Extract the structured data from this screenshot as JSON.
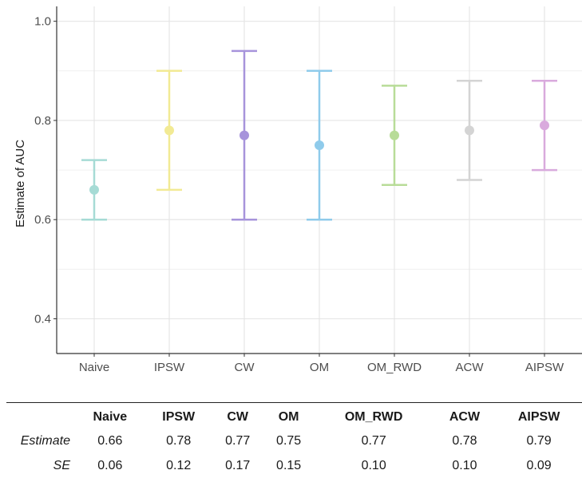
{
  "chart_data": {
    "type": "errorbar",
    "ylabel": "Estimate of AUC",
    "xlabel": "",
    "categories": [
      "Naive",
      "IPSW",
      "CW",
      "OM",
      "OM_RWD",
      "ACW",
      "AIPSW"
    ],
    "estimates": [
      0.66,
      0.78,
      0.77,
      0.75,
      0.77,
      0.78,
      0.79
    ],
    "lower": [
      0.6,
      0.66,
      0.6,
      0.6,
      0.67,
      0.68,
      0.7
    ],
    "upper": [
      0.72,
      0.9,
      0.94,
      0.9,
      0.87,
      0.88,
      0.88
    ],
    "colors": [
      "#a6dbd5",
      "#f2ea94",
      "#a794db",
      "#8fcbeb",
      "#b8dc98",
      "#d4d4d4",
      "#d9aadd"
    ],
    "ylim": [
      0.33,
      1.03
    ],
    "yticks": [
      0.4,
      0.6,
      0.8,
      1.0
    ],
    "ytick_labels": [
      "0.4",
      "0.6",
      "0.8",
      "1.0"
    ],
    "grid": true,
    "legend": "none"
  },
  "table": {
    "headers": [
      "",
      "Naive",
      "IPSW",
      "CW",
      "OM",
      "OM_RWD",
      "ACW",
      "AIPSW"
    ],
    "rows": [
      {
        "label": "Estimate",
        "values": [
          "0.66",
          "0.78",
          "0.77",
          "0.75",
          "0.77",
          "0.78",
          "0.79"
        ]
      },
      {
        "label": "SE",
        "values": [
          "0.06",
          "0.12",
          "0.17",
          "0.15",
          "0.10",
          "0.10",
          "0.09"
        ]
      }
    ]
  }
}
